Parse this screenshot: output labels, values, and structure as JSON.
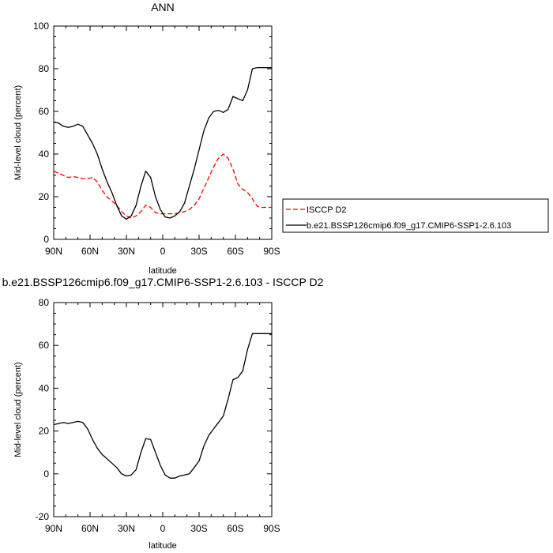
{
  "chart_data": [
    {
      "type": "line",
      "title": "ANN",
      "xlabel": "latitude",
      "ylabel": "Mid-level cloud (percent)",
      "ylim": [
        0,
        100
      ],
      "xlim": [
        -90,
        90
      ],
      "xtick_labels": [
        "90N",
        "60N",
        "30N",
        "0",
        "30S",
        "60S",
        "90S"
      ],
      "ytick_labels": [
        "0",
        "20",
        "40",
        "60",
        "80",
        "100"
      ],
      "legend": "right",
      "series": [
        {
          "name": "ISCCP D2",
          "color": "#ff0000",
          "style": "dashed",
          "x": [
            -90,
            -86,
            -82,
            -78,
            -74,
            -70,
            -66,
            -62,
            -58,
            -54,
            -50,
            -46,
            -42,
            -38,
            -34,
            -30,
            -26,
            -22,
            -18,
            -14,
            -10,
            -6,
            -2,
            2,
            6,
            10,
            14,
            18,
            22,
            26,
            30,
            34,
            38,
            42,
            46,
            50,
            54,
            58,
            62,
            66,
            70,
            74,
            78,
            82,
            86,
            90
          ],
          "y": [
            32,
            31,
            30,
            29,
            29.5,
            29,
            28.5,
            28.5,
            29,
            27,
            23,
            20,
            18,
            16,
            13,
            11,
            10,
            11,
            13,
            16,
            15,
            12.5,
            12,
            12,
            12,
            12,
            12.5,
            13,
            14,
            16,
            19,
            24,
            29,
            34,
            38,
            40,
            38,
            33,
            26,
            23.5,
            22,
            19,
            15.5,
            15,
            15,
            15
          ]
        },
        {
          "name": "b.e21.BSSP126cmip6.f09_g17.CMIP6-SSP1-2.6.103",
          "color": "#000000",
          "style": "solid",
          "x": [
            -90,
            -86,
            -82,
            -78,
            -74,
            -70,
            -66,
            -62,
            -58,
            -54,
            -50,
            -46,
            -42,
            -38,
            -34,
            -30,
            -26,
            -22,
            -18,
            -14,
            -10,
            -6,
            -2,
            2,
            6,
            10,
            14,
            18,
            22,
            26,
            30,
            34,
            38,
            42,
            46,
            50,
            54,
            58,
            62,
            66,
            70,
            74,
            78,
            82,
            86,
            90
          ],
          "y": [
            55,
            54.5,
            53,
            52.5,
            53,
            54,
            53,
            49,
            45,
            40,
            33,
            27,
            22,
            16,
            11,
            9.5,
            11,
            16,
            25,
            32,
            29,
            20,
            14,
            10.5,
            10,
            11,
            13,
            17,
            25,
            33,
            42,
            51,
            57,
            60,
            60.5,
            59.5,
            61,
            67,
            66,
            65,
            70,
            80,
            80.5,
            80.5,
            80.5,
            80.5
          ]
        }
      ]
    },
    {
      "type": "line",
      "title": "b.e21.BSSP126cmip6.f09_g17.CMIP6-SSP1-2.6.103 - ISCCP D2",
      "xlabel": "latitude",
      "ylabel": "Mid-level cloud (percent)",
      "ylim": [
        -20,
        80
      ],
      "xlim": [
        -90,
        90
      ],
      "xtick_labels": [
        "90N",
        "60N",
        "30N",
        "0",
        "30S",
        "60S",
        "90S"
      ],
      "ytick_labels": [
        "-20",
        "0",
        "20",
        "40",
        "60",
        "80"
      ],
      "series": [
        {
          "color": "#000000",
          "style": "solid",
          "x": [
            -90,
            -86,
            -82,
            -78,
            -74,
            -70,
            -66,
            -62,
            -58,
            -54,
            -50,
            -46,
            -42,
            -38,
            -34,
            -30,
            -26,
            -22,
            -18,
            -14,
            -10,
            -6,
            -2,
            2,
            6,
            10,
            14,
            18,
            22,
            26,
            30,
            34,
            38,
            42,
            46,
            50,
            54,
            58,
            62,
            66,
            70,
            74,
            78,
            82,
            86,
            90
          ],
          "y": [
            23,
            23.5,
            24,
            23.5,
            24,
            24.5,
            24,
            21,
            16,
            12,
            9,
            7,
            5,
            3,
            0,
            -1,
            -0.5,
            2,
            10,
            16.5,
            16,
            10,
            4,
            -0.5,
            -2,
            -2,
            -1,
            -0.5,
            0,
            3,
            6,
            13,
            18,
            21,
            24,
            27,
            35,
            44,
            45,
            48,
            58,
            65.5,
            65.5,
            65.5,
            65.5,
            65.5
          ]
        }
      ]
    }
  ]
}
